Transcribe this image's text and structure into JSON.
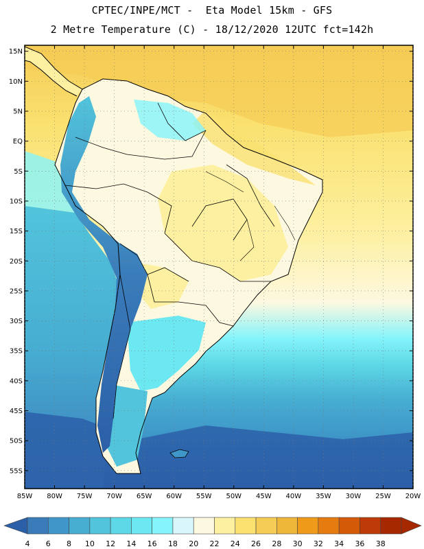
{
  "header": {
    "line1": "CPTEC/INPE/MCT -  Eta Model 15km - GFS",
    "line2": "2 Metre Temperature (C) - 18/12/2020 12UTC fct=142h"
  },
  "map": {
    "lon_range": [
      -85,
      -20
    ],
    "lat_range": [
      -58,
      16
    ],
    "lat_ticks": [
      "15N",
      "10N",
      "5N",
      "EQ",
      "5S",
      "10S",
      "15S",
      "20S",
      "25S",
      "30S",
      "35S",
      "40S",
      "45S",
      "50S",
      "55S"
    ],
    "lon_ticks": [
      "85W",
      "80W",
      "75W",
      "70W",
      "65W",
      "60W",
      "55W",
      "50W",
      "45W",
      "40W",
      "35W",
      "30W",
      "25W",
      "20W"
    ]
  },
  "colorbar": {
    "labels": [
      "4",
      "6",
      "8",
      "10",
      "12",
      "14",
      "16",
      "18",
      "20",
      "22",
      "24",
      "26",
      "28",
      "30",
      "32",
      "34",
      "36",
      "38"
    ],
    "colors": [
      "#2b5fa8",
      "#3a7cba",
      "#3f96c8",
      "#47aed2",
      "#52c4dc",
      "#5dd8e6",
      "#6ce8f2",
      "#86f4fb",
      "#d9f7fb",
      "#fdf8e0",
      "#fdf0a0",
      "#fae170",
      "#f5cc55",
      "#efb73a",
      "#f09a1a",
      "#e67c10",
      "#d55a08",
      "#be3a06",
      "#a52800"
    ],
    "under_color": "#2b5fa8",
    "over_color": "#a52800"
  }
}
